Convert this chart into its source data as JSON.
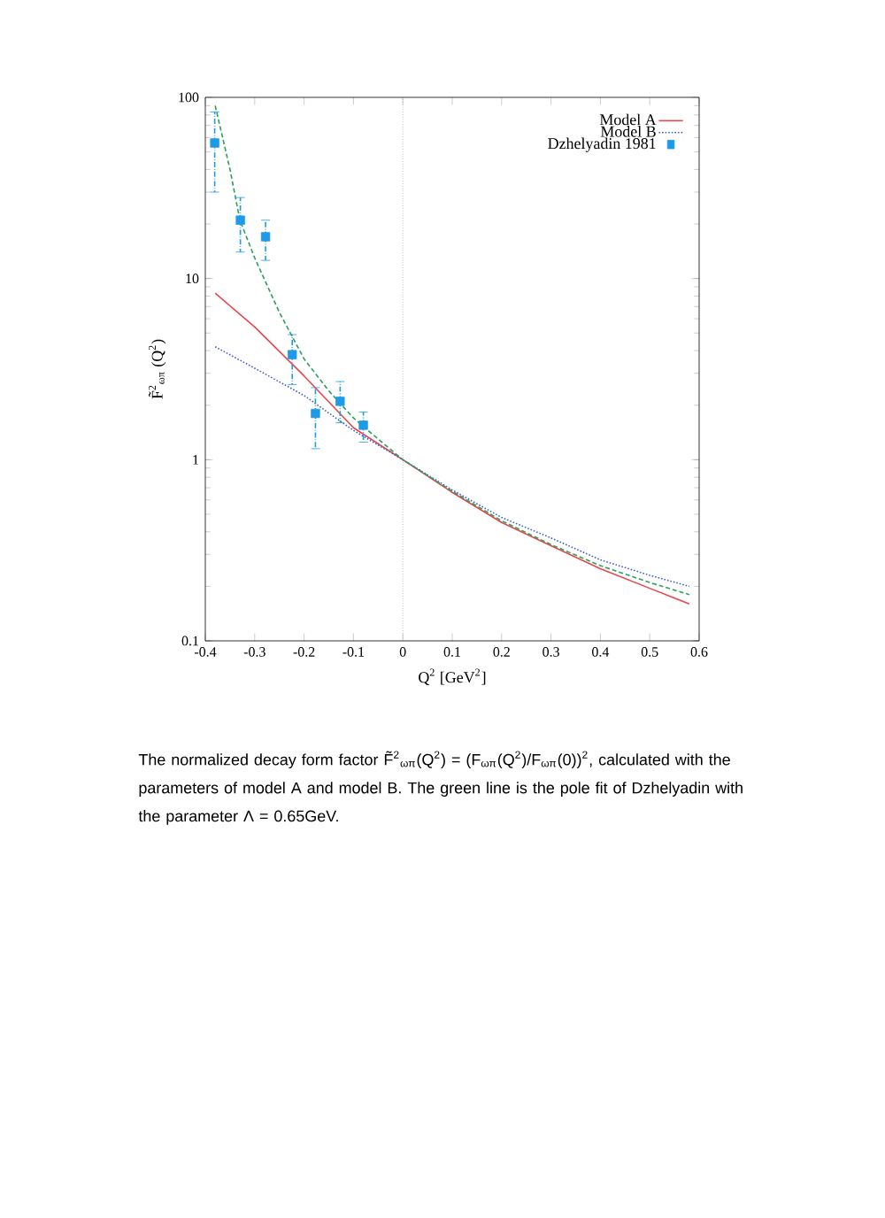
{
  "chart_data": {
    "type": "line",
    "xlabel": "Q$^{2}$ [GeV$^{2}$]",
    "ylabel": "F̃$^{2}$$_{ωπ}$ (Q$^{2}$)",
    "log": "y",
    "xlim": [
      -0.4,
      0.6
    ],
    "ylim": [
      0.1,
      100
    ],
    "xticks": [
      -0.4,
      -0.3,
      -0.2,
      -0.1,
      0,
      0.1,
      0.2,
      0.3,
      0.4,
      0.5,
      0.6
    ],
    "yticks": [
      0.1,
      1,
      10,
      100
    ],
    "legend": "top right",
    "grid": false,
    "series": [
      {
        "name": "Model A",
        "color": "#e8464a",
        "line_style": "solid",
        "marker": "none",
        "x": [
          -0.38,
          -0.3,
          -0.2,
          -0.1,
          0,
          0.1,
          0.2,
          0.3,
          0.4,
          0.5,
          0.58
        ],
        "values": [
          8.3,
          5.4,
          2.9,
          1.5,
          1,
          0.66,
          0.45,
          0.335,
          0.25,
          0.195,
          0.16
        ]
      },
      {
        "name": "Model B",
        "color": "#3d5fd6",
        "line_style": "dotted",
        "marker": "none",
        "x": [
          -0.38,
          -0.3,
          -0.2,
          -0.1,
          0,
          0.1,
          0.2,
          0.3,
          0.4,
          0.5,
          0.58
        ],
        "values": [
          4.2,
          3.2,
          2.26,
          1.45,
          1,
          0.68,
          0.48,
          0.37,
          0.28,
          0.23,
          0.2
        ]
      },
      {
        "color": "#2aa05a",
        "line_style": "dashed",
        "marker": "none",
        "x": [
          -0.38,
          -0.35,
          -0.33,
          -0.3,
          -0.25,
          -0.2,
          -0.15,
          -0.1,
          -0.05,
          0,
          0.1,
          0.2,
          0.3,
          0.4,
          0.5,
          0.58
        ],
        "values": [
          90,
          40,
          21,
          13,
          6.5,
          3.6,
          2.4,
          1.7,
          1.3,
          1,
          0.67,
          0.46,
          0.34,
          0.26,
          0.21,
          0.18
        ]
      },
      {
        "name": "Dzhelyadin 1981",
        "type": "scatter",
        "color": "#1e9be8",
        "marker": "square",
        "x": [
          -0.381,
          -0.329,
          -0.278,
          -0.224,
          -0.177,
          -0.127,
          -0.08
        ],
        "values": [
          56,
          21,
          17,
          3.8,
          1.8,
          2.1,
          1.55
        ],
        "errors": [
          [
            30,
            83
          ],
          [
            14,
            28
          ],
          [
            12.6,
            21
          ],
          [
            2.6,
            4.9
          ],
          [
            1.15,
            2.5
          ],
          [
            1.6,
            2.7
          ],
          [
            1.25,
            1.83
          ]
        ]
      }
    ],
    "ref_lines": [
      {
        "axis": "x",
        "value": 0,
        "color": "#999999",
        "line_style": "dotted"
      }
    ],
    "annotations": [
      "The normalized decay form factor F̃$^{2}$$_{ωπ}$(Q$^{2}$) = (F$_{ωπ}$(Q$^{2}$)/F$_{ωπ}$(0))$^{2}$, calculated with the parameters of model A and model B. The green line is the pole fit of Dzhelyadin with the parameter Λ = 0.65GeV."
    ]
  }
}
